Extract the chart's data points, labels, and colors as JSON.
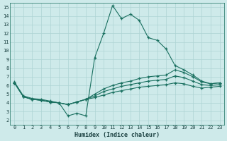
{
  "xlabel": "Humidex (Indice chaleur)",
  "xlim": [
    -0.5,
    23.5
  ],
  "ylim": [
    1.5,
    15.5
  ],
  "xticks": [
    0,
    1,
    2,
    3,
    4,
    5,
    6,
    7,
    8,
    9,
    10,
    11,
    12,
    13,
    14,
    15,
    16,
    17,
    18,
    19,
    20,
    21,
    22,
    23
  ],
  "yticks": [
    2,
    3,
    4,
    5,
    6,
    7,
    8,
    9,
    10,
    11,
    12,
    13,
    14,
    15
  ],
  "bg_color": "#ceeaea",
  "grid_color": "#aed4d4",
  "line_color": "#1a7060",
  "line1_y": [
    6.4,
    4.8,
    4.5,
    4.4,
    4.2,
    4.0,
    2.5,
    2.8,
    2.5,
    9.2,
    12.0,
    15.2,
    13.7,
    14.2,
    13.5,
    11.5,
    11.2,
    10.2,
    8.3,
    7.8,
    7.2,
    6.5,
    6.2,
    6.3
  ],
  "line2_y": [
    6.3,
    4.7,
    4.4,
    4.3,
    4.1,
    4.0,
    3.8,
    4.1,
    4.4,
    5.0,
    5.6,
    6.0,
    6.3,
    6.5,
    6.8,
    7.0,
    7.1,
    7.2,
    7.8,
    7.5,
    7.0,
    6.4,
    6.2,
    6.3
  ],
  "line3_y": [
    6.3,
    4.7,
    4.4,
    4.3,
    4.1,
    4.0,
    3.8,
    4.1,
    4.4,
    4.8,
    5.3,
    5.6,
    5.9,
    6.1,
    6.3,
    6.5,
    6.6,
    6.7,
    7.1,
    6.9,
    6.5,
    6.1,
    6.0,
    6.1
  ],
  "line4_y": [
    6.3,
    4.7,
    4.4,
    4.3,
    4.1,
    4.0,
    3.8,
    4.1,
    4.4,
    4.6,
    4.9,
    5.2,
    5.4,
    5.6,
    5.8,
    5.9,
    6.0,
    6.1,
    6.3,
    6.2,
    5.9,
    5.7,
    5.8,
    5.9
  ]
}
